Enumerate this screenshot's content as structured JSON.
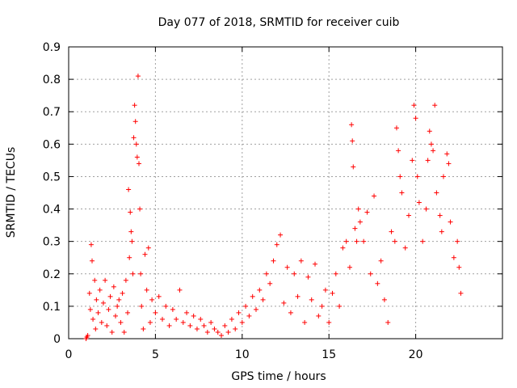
{
  "chart_data": {
    "type": "scatter",
    "title": "Day 077 of 2018, SRMTID for receiver cuib",
    "xlabel": "GPS time / hours",
    "ylabel": "SRMTID / TECUs",
    "xlim": [
      0,
      25
    ],
    "ylim": [
      0,
      0.9
    ],
    "xticks": [
      0,
      5,
      10,
      15,
      20
    ],
    "xtick_labels": [
      "0",
      "5",
      "10",
      "15",
      "20"
    ],
    "yticks": [
      0,
      0.1,
      0.2,
      0.3,
      0.4,
      0.5,
      0.6,
      0.7,
      0.8,
      0.9
    ],
    "ytick_labels": [
      "0",
      "0.1",
      "0.2",
      "0.3",
      "0.4",
      "0.5",
      "0.6",
      "0.7",
      "0.8",
      "0.9"
    ],
    "grid": true,
    "marker": "+",
    "color": "#ff0000",
    "series": [
      {
        "name": "SRMTID",
        "points": [
          [
            1.0,
            0.0
          ],
          [
            1.05,
            0.005
          ],
          [
            1.1,
            0.01
          ],
          [
            1.2,
            0.14
          ],
          [
            1.25,
            0.09
          ],
          [
            1.3,
            0.29
          ],
          [
            1.35,
            0.24
          ],
          [
            1.4,
            0.06
          ],
          [
            1.5,
            0.18
          ],
          [
            1.55,
            0.03
          ],
          [
            1.6,
            0.12
          ],
          [
            1.7,
            0.08
          ],
          [
            1.8,
            0.15
          ],
          [
            1.9,
            0.05
          ],
          [
            2.0,
            0.11
          ],
          [
            2.1,
            0.18
          ],
          [
            2.2,
            0.04
          ],
          [
            2.3,
            0.09
          ],
          [
            2.4,
            0.13
          ],
          [
            2.5,
            0.02
          ],
          [
            2.6,
            0.16
          ],
          [
            2.7,
            0.07
          ],
          [
            2.8,
            0.1
          ],
          [
            2.9,
            0.12
          ],
          [
            3.0,
            0.05
          ],
          [
            3.1,
            0.14
          ],
          [
            3.2,
            0.02
          ],
          [
            3.3,
            0.18
          ],
          [
            3.4,
            0.08
          ],
          [
            3.45,
            0.46
          ],
          [
            3.5,
            0.25
          ],
          [
            3.55,
            0.39
          ],
          [
            3.6,
            0.33
          ],
          [
            3.65,
            0.3
          ],
          [
            3.7,
            0.2
          ],
          [
            3.75,
            0.62
          ],
          [
            3.8,
            0.72
          ],
          [
            3.85,
            0.67
          ],
          [
            3.9,
            0.6
          ],
          [
            3.95,
            0.56
          ],
          [
            4.0,
            0.81
          ],
          [
            4.05,
            0.54
          ],
          [
            4.1,
            0.4
          ],
          [
            4.15,
            0.2
          ],
          [
            4.2,
            0.1
          ],
          [
            4.3,
            0.03
          ],
          [
            4.4,
            0.26
          ],
          [
            4.5,
            0.15
          ],
          [
            4.6,
            0.28
          ],
          [
            4.7,
            0.05
          ],
          [
            4.8,
            0.12
          ],
          [
            5.0,
            0.08
          ],
          [
            5.2,
            0.13
          ],
          [
            5.4,
            0.06
          ],
          [
            5.6,
            0.1
          ],
          [
            5.8,
            0.04
          ],
          [
            6.0,
            0.09
          ],
          [
            6.2,
            0.06
          ],
          [
            6.4,
            0.15
          ],
          [
            6.6,
            0.05
          ],
          [
            6.8,
            0.08
          ],
          [
            7.0,
            0.04
          ],
          [
            7.2,
            0.07
          ],
          [
            7.4,
            0.03
          ],
          [
            7.6,
            0.06
          ],
          [
            7.8,
            0.04
          ],
          [
            8.0,
            0.02
          ],
          [
            8.2,
            0.05
          ],
          [
            8.4,
            0.03
          ],
          [
            8.6,
            0.02
          ],
          [
            8.8,
            0.01
          ],
          [
            9.0,
            0.04
          ],
          [
            9.2,
            0.02
          ],
          [
            9.4,
            0.06
          ],
          [
            9.6,
            0.03
          ],
          [
            9.8,
            0.08
          ],
          [
            10.0,
            0.05
          ],
          [
            10.2,
            0.1
          ],
          [
            10.4,
            0.07
          ],
          [
            10.6,
            0.13
          ],
          [
            10.8,
            0.09
          ],
          [
            11.0,
            0.15
          ],
          [
            11.2,
            0.12
          ],
          [
            11.4,
            0.2
          ],
          [
            11.6,
            0.17
          ],
          [
            11.8,
            0.24
          ],
          [
            12.0,
            0.29
          ],
          [
            12.2,
            0.32
          ],
          [
            12.4,
            0.11
          ],
          [
            12.6,
            0.22
          ],
          [
            12.8,
            0.08
          ],
          [
            13.0,
            0.2
          ],
          [
            13.2,
            0.13
          ],
          [
            13.4,
            0.24
          ],
          [
            13.6,
            0.05
          ],
          [
            13.8,
            0.19
          ],
          [
            14.0,
            0.12
          ],
          [
            14.2,
            0.23
          ],
          [
            14.4,
            0.07
          ],
          [
            14.6,
            0.1
          ],
          [
            14.8,
            0.15
          ],
          [
            15.0,
            0.05
          ],
          [
            15.2,
            0.14
          ],
          [
            15.4,
            0.2
          ],
          [
            15.6,
            0.1
          ],
          [
            15.8,
            0.28
          ],
          [
            16.0,
            0.3
          ],
          [
            16.2,
            0.22
          ],
          [
            16.3,
            0.66
          ],
          [
            16.35,
            0.61
          ],
          [
            16.4,
            0.53
          ],
          [
            16.5,
            0.34
          ],
          [
            16.6,
            0.3
          ],
          [
            16.7,
            0.4
          ],
          [
            16.8,
            0.36
          ],
          [
            17.0,
            0.3
          ],
          [
            17.2,
            0.39
          ],
          [
            17.4,
            0.2
          ],
          [
            17.6,
            0.44
          ],
          [
            17.8,
            0.17
          ],
          [
            18.0,
            0.24
          ],
          [
            18.2,
            0.12
          ],
          [
            18.4,
            0.05
          ],
          [
            18.6,
            0.33
          ],
          [
            18.8,
            0.3
          ],
          [
            18.9,
            0.65
          ],
          [
            19.0,
            0.58
          ],
          [
            19.1,
            0.5
          ],
          [
            19.2,
            0.45
          ],
          [
            19.4,
            0.28
          ],
          [
            19.6,
            0.38
          ],
          [
            19.8,
            0.55
          ],
          [
            19.9,
            0.72
          ],
          [
            20.0,
            0.68
          ],
          [
            20.1,
            0.5
          ],
          [
            20.2,
            0.42
          ],
          [
            20.4,
            0.3
          ],
          [
            20.6,
            0.4
          ],
          [
            20.7,
            0.55
          ],
          [
            20.8,
            0.64
          ],
          [
            20.9,
            0.6
          ],
          [
            21.0,
            0.58
          ],
          [
            21.1,
            0.72
          ],
          [
            21.2,
            0.45
          ],
          [
            21.4,
            0.38
          ],
          [
            21.5,
            0.33
          ],
          [
            21.6,
            0.5
          ],
          [
            21.8,
            0.57
          ],
          [
            21.9,
            0.54
          ],
          [
            22.0,
            0.36
          ],
          [
            22.2,
            0.25
          ],
          [
            22.4,
            0.3
          ],
          [
            22.5,
            0.22
          ],
          [
            22.6,
            0.14
          ]
        ]
      }
    ]
  }
}
